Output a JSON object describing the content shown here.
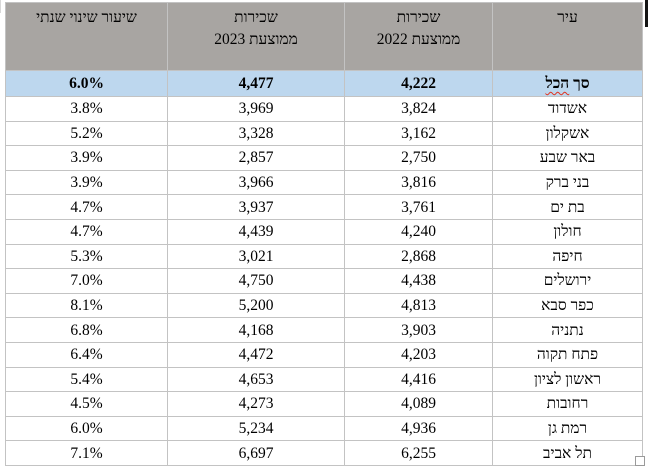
{
  "table": {
    "columns": [
      {
        "id": "city",
        "lines": [
          "עיר"
        ]
      },
      {
        "id": "rent_2022",
        "lines": [
          "שכירות",
          "ממוצעת 2022"
        ]
      },
      {
        "id": "rent_2023",
        "lines": [
          "שכירות",
          "ממוצעת 2023"
        ]
      },
      {
        "id": "annual_change",
        "lines": [
          "שיעור שינוי שנתי"
        ]
      }
    ],
    "total_row": {
      "city_prefix": "סך",
      "city_spellchecked": "הכל",
      "rent_2022": "4,222",
      "rent_2023": "4,477",
      "annual_change": "6.0%"
    },
    "rows": [
      {
        "city": "אשדוד",
        "rent_2022": "3,824",
        "rent_2023": "3,969",
        "annual_change": "3.8%"
      },
      {
        "city": "אשקלון",
        "rent_2022": "3,162",
        "rent_2023": "3,328",
        "annual_change": "5.2%"
      },
      {
        "city": "באר שבע",
        "rent_2022": "2,750",
        "rent_2023": "2,857",
        "annual_change": "3.9%"
      },
      {
        "city": "בני ברק",
        "rent_2022": "3,816",
        "rent_2023": "3,966",
        "annual_change": "3.9%"
      },
      {
        "city": "בת ים",
        "rent_2022": "3,761",
        "rent_2023": "3,937",
        "annual_change": "4.7%"
      },
      {
        "city": "חולון",
        "rent_2022": "4,240",
        "rent_2023": "4,439",
        "annual_change": "4.7%"
      },
      {
        "city": "חיפה",
        "rent_2022": "2,868",
        "rent_2023": "3,021",
        "annual_change": "5.3%"
      },
      {
        "city": "ירושלים",
        "rent_2022": "4,438",
        "rent_2023": "4,750",
        "annual_change": "7.0%"
      },
      {
        "city": "כפר סבא",
        "rent_2022": "4,813",
        "rent_2023": "5,200",
        "annual_change": "8.1%"
      },
      {
        "city": "נתניה",
        "rent_2022": "3,903",
        "rent_2023": "4,168",
        "annual_change": "6.8%"
      },
      {
        "city": "פתח תקוה",
        "rent_2022": "4,203",
        "rent_2023": "4,472",
        "annual_change": "6.4%"
      },
      {
        "city": "ראשון לציון",
        "rent_2022": "4,416",
        "rent_2023": "4,653",
        "annual_change": "5.4%"
      },
      {
        "city": "רחובות",
        "rent_2022": "4,089",
        "rent_2023": "4,273",
        "annual_change": "4.5%"
      },
      {
        "city": "רמת גן",
        "rent_2022": "4,936",
        "rent_2023": "5,234",
        "annual_change": "6.0%"
      },
      {
        "city": "תל אביב",
        "rent_2022": "6,255",
        "rent_2023": "6,697",
        "annual_change": "7.1%"
      }
    ]
  },
  "colors": {
    "header_bg": "#a8a5a2",
    "total_row_bg": "#bdd7ee",
    "grid_border": "#c3c3c3",
    "spellcheck_squiggle": "#e0321e",
    "text": "#000000"
  }
}
